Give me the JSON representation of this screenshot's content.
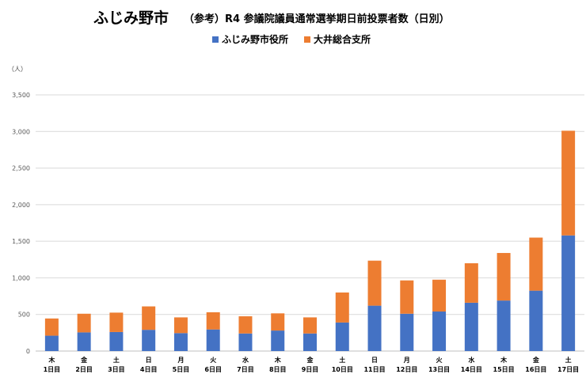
{
  "colors": {
    "city_hall": "#4472c4",
    "oi_branch": "#ed7d31",
    "grid": "#d9d9d9",
    "axis": "#bfbfbf"
  },
  "chart_data": {
    "type": "bar",
    "stacked": true,
    "title": "ふじみ野市",
    "subtitle": "（参考）R4 参議院議員通常選挙期日前投票者数（日別）",
    "ylabel": "（人）",
    "xlabel": "",
    "ylim": [
      0,
      3500
    ],
    "yticks": [
      0,
      500,
      1000,
      1500,
      2000,
      2500,
      3000,
      3500
    ],
    "ytick_labels": [
      "0",
      "500",
      "1,000",
      "1,500",
      "2,000",
      "2,500",
      "3,000",
      "3,500"
    ],
    "grid": true,
    "legend_position": "top-center",
    "categories": [
      {
        "weekday": "木",
        "day": "1日目"
      },
      {
        "weekday": "金",
        "day": "2日目"
      },
      {
        "weekday": "土",
        "day": "3日目"
      },
      {
        "weekday": "日",
        "day": "4日目"
      },
      {
        "weekday": "月",
        "day": "5日目"
      },
      {
        "weekday": "火",
        "day": "6日目"
      },
      {
        "weekday": "水",
        "day": "7日目"
      },
      {
        "weekday": "木",
        "day": "8日目"
      },
      {
        "weekday": "金",
        "day": "9日目"
      },
      {
        "weekday": "土",
        "day": "10日目"
      },
      {
        "weekday": "日",
        "day": "11日目"
      },
      {
        "weekday": "月",
        "day": "12日目"
      },
      {
        "weekday": "火",
        "day": "13日目"
      },
      {
        "weekday": "水",
        "day": "14日目"
      },
      {
        "weekday": "木",
        "day": "15日目"
      },
      {
        "weekday": "金",
        "day": "16日目"
      },
      {
        "weekday": "土",
        "day": "17日目"
      }
    ],
    "series": [
      {
        "name": "ふじみ野市役所",
        "color": "#4472c4",
        "values": [
          210,
          255,
          260,
          290,
          245,
          295,
          240,
          280,
          240,
          390,
          620,
          510,
          540,
          660,
          690,
          825,
          1580
        ]
      },
      {
        "name": "大井総合支所",
        "color": "#ed7d31",
        "values": [
          235,
          255,
          265,
          320,
          215,
          235,
          235,
          235,
          220,
          410,
          615,
          455,
          435,
          540,
          650,
          725,
          1430
        ]
      }
    ]
  }
}
